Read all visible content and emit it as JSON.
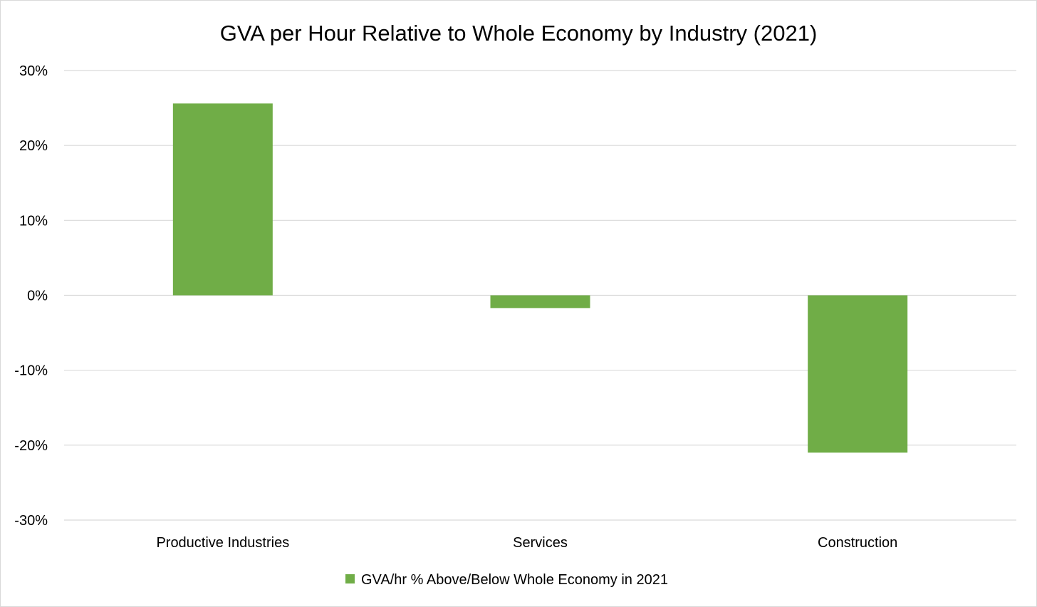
{
  "chart_data": {
    "type": "bar",
    "title": "GVA per Hour Relative to Whole Economy by Industry (2021)",
    "categories": [
      "Productive Industries",
      "Services",
      "Construction"
    ],
    "series": [
      {
        "name": "GVA/hr % Above/Below Whole Economy in 2021",
        "values": [
          25.6,
          -1.7,
          -21.0
        ],
        "color": "#70ad47"
      }
    ],
    "ylim": [
      -30,
      30
    ],
    "yticks": [
      30,
      20,
      10,
      0,
      -10,
      -20,
      -30
    ],
    "ytick_labels": [
      "30%",
      "20%",
      "10%",
      "0%",
      "-10%",
      "-20%",
      "-30%"
    ],
    "xlabel": "",
    "ylabel": "",
    "grid": true,
    "gridline_color": "#d9d9d9",
    "legend_position": "bottom"
  }
}
